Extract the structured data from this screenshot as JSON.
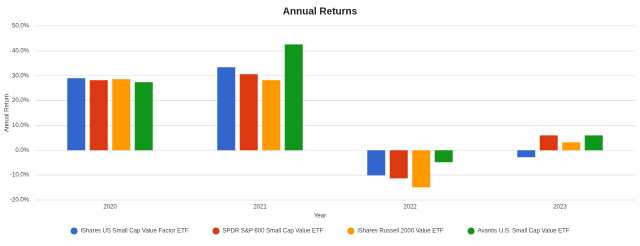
{
  "chart_data": {
    "type": "bar",
    "title": "Annual Returns",
    "x_label": "Year",
    "y_label": "Annual Return",
    "categories": [
      "2020",
      "2021",
      "2022",
      "2023"
    ],
    "series": [
      {
        "name": "iShares US Small Cap Value Factor ETF",
        "color": "#3366cc",
        "values": [
          29.0,
          33.4,
          -10.1,
          -2.8
        ]
      },
      {
        "name": "SPDR S&P 600 Small Cap Value ETF",
        "color": "#dc3912",
        "values": [
          28.2,
          30.6,
          -11.3,
          6.0
        ]
      },
      {
        "name": "iShares Russell 2000 Value ETF",
        "color": "#ff9900",
        "values": [
          28.6,
          28.2,
          -14.9,
          3.2
        ]
      },
      {
        "name": "Avantis U.S. Small Cap Value ETF",
        "color": "#109618",
        "values": [
          27.4,
          42.6,
          -4.8,
          6.0
        ]
      }
    ],
    "ylim": [
      -20,
      50
    ],
    "yticks": [
      {
        "value": -20,
        "label": "-20.0%"
      },
      {
        "value": -10,
        "label": "-10.0%"
      },
      {
        "value": 0,
        "label": "0.0%"
      },
      {
        "value": 10,
        "label": "10.0%"
      },
      {
        "value": 20,
        "label": "20.0%"
      },
      {
        "value": 30,
        "label": "30.0%"
      },
      {
        "value": 40,
        "label": "40.0%"
      },
      {
        "value": 50,
        "label": "50.0%"
      }
    ],
    "grid": true,
    "legend": "bottom"
  }
}
